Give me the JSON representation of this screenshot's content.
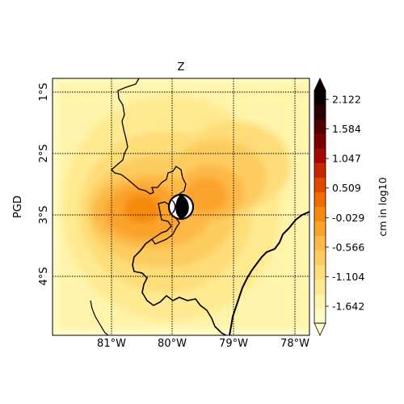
{
  "map": {
    "title": "Z",
    "side_label": "PGD",
    "lon_ticks": [
      "81°W",
      "80°W",
      "79°W",
      "78°W"
    ],
    "lat_ticks": [
      "1°S",
      "2°S",
      "3°S",
      "4°S"
    ]
  },
  "colorbar": {
    "label": "cm in log10",
    "ticks": [
      "2.122",
      "1.584",
      "1.047",
      "0.509",
      "-0.029",
      "-0.566",
      "-1.104",
      "-1.642"
    ],
    "extend": "both",
    "colors_high_to_low": [
      "#0a0000",
      "#2b0000",
      "#540000",
      "#7d0000",
      "#a30a00",
      "#c72600",
      "#e24a00",
      "#f06c00",
      "#f78a0c",
      "#fba22a",
      "#fdb847",
      "#fdcc60",
      "#fedd79",
      "#ffea91",
      "#fff4aa",
      "#fffbc6"
    ]
  },
  "beachball": {
    "name": "focal-mechanism",
    "shaded": "black",
    "background": "white"
  }
}
